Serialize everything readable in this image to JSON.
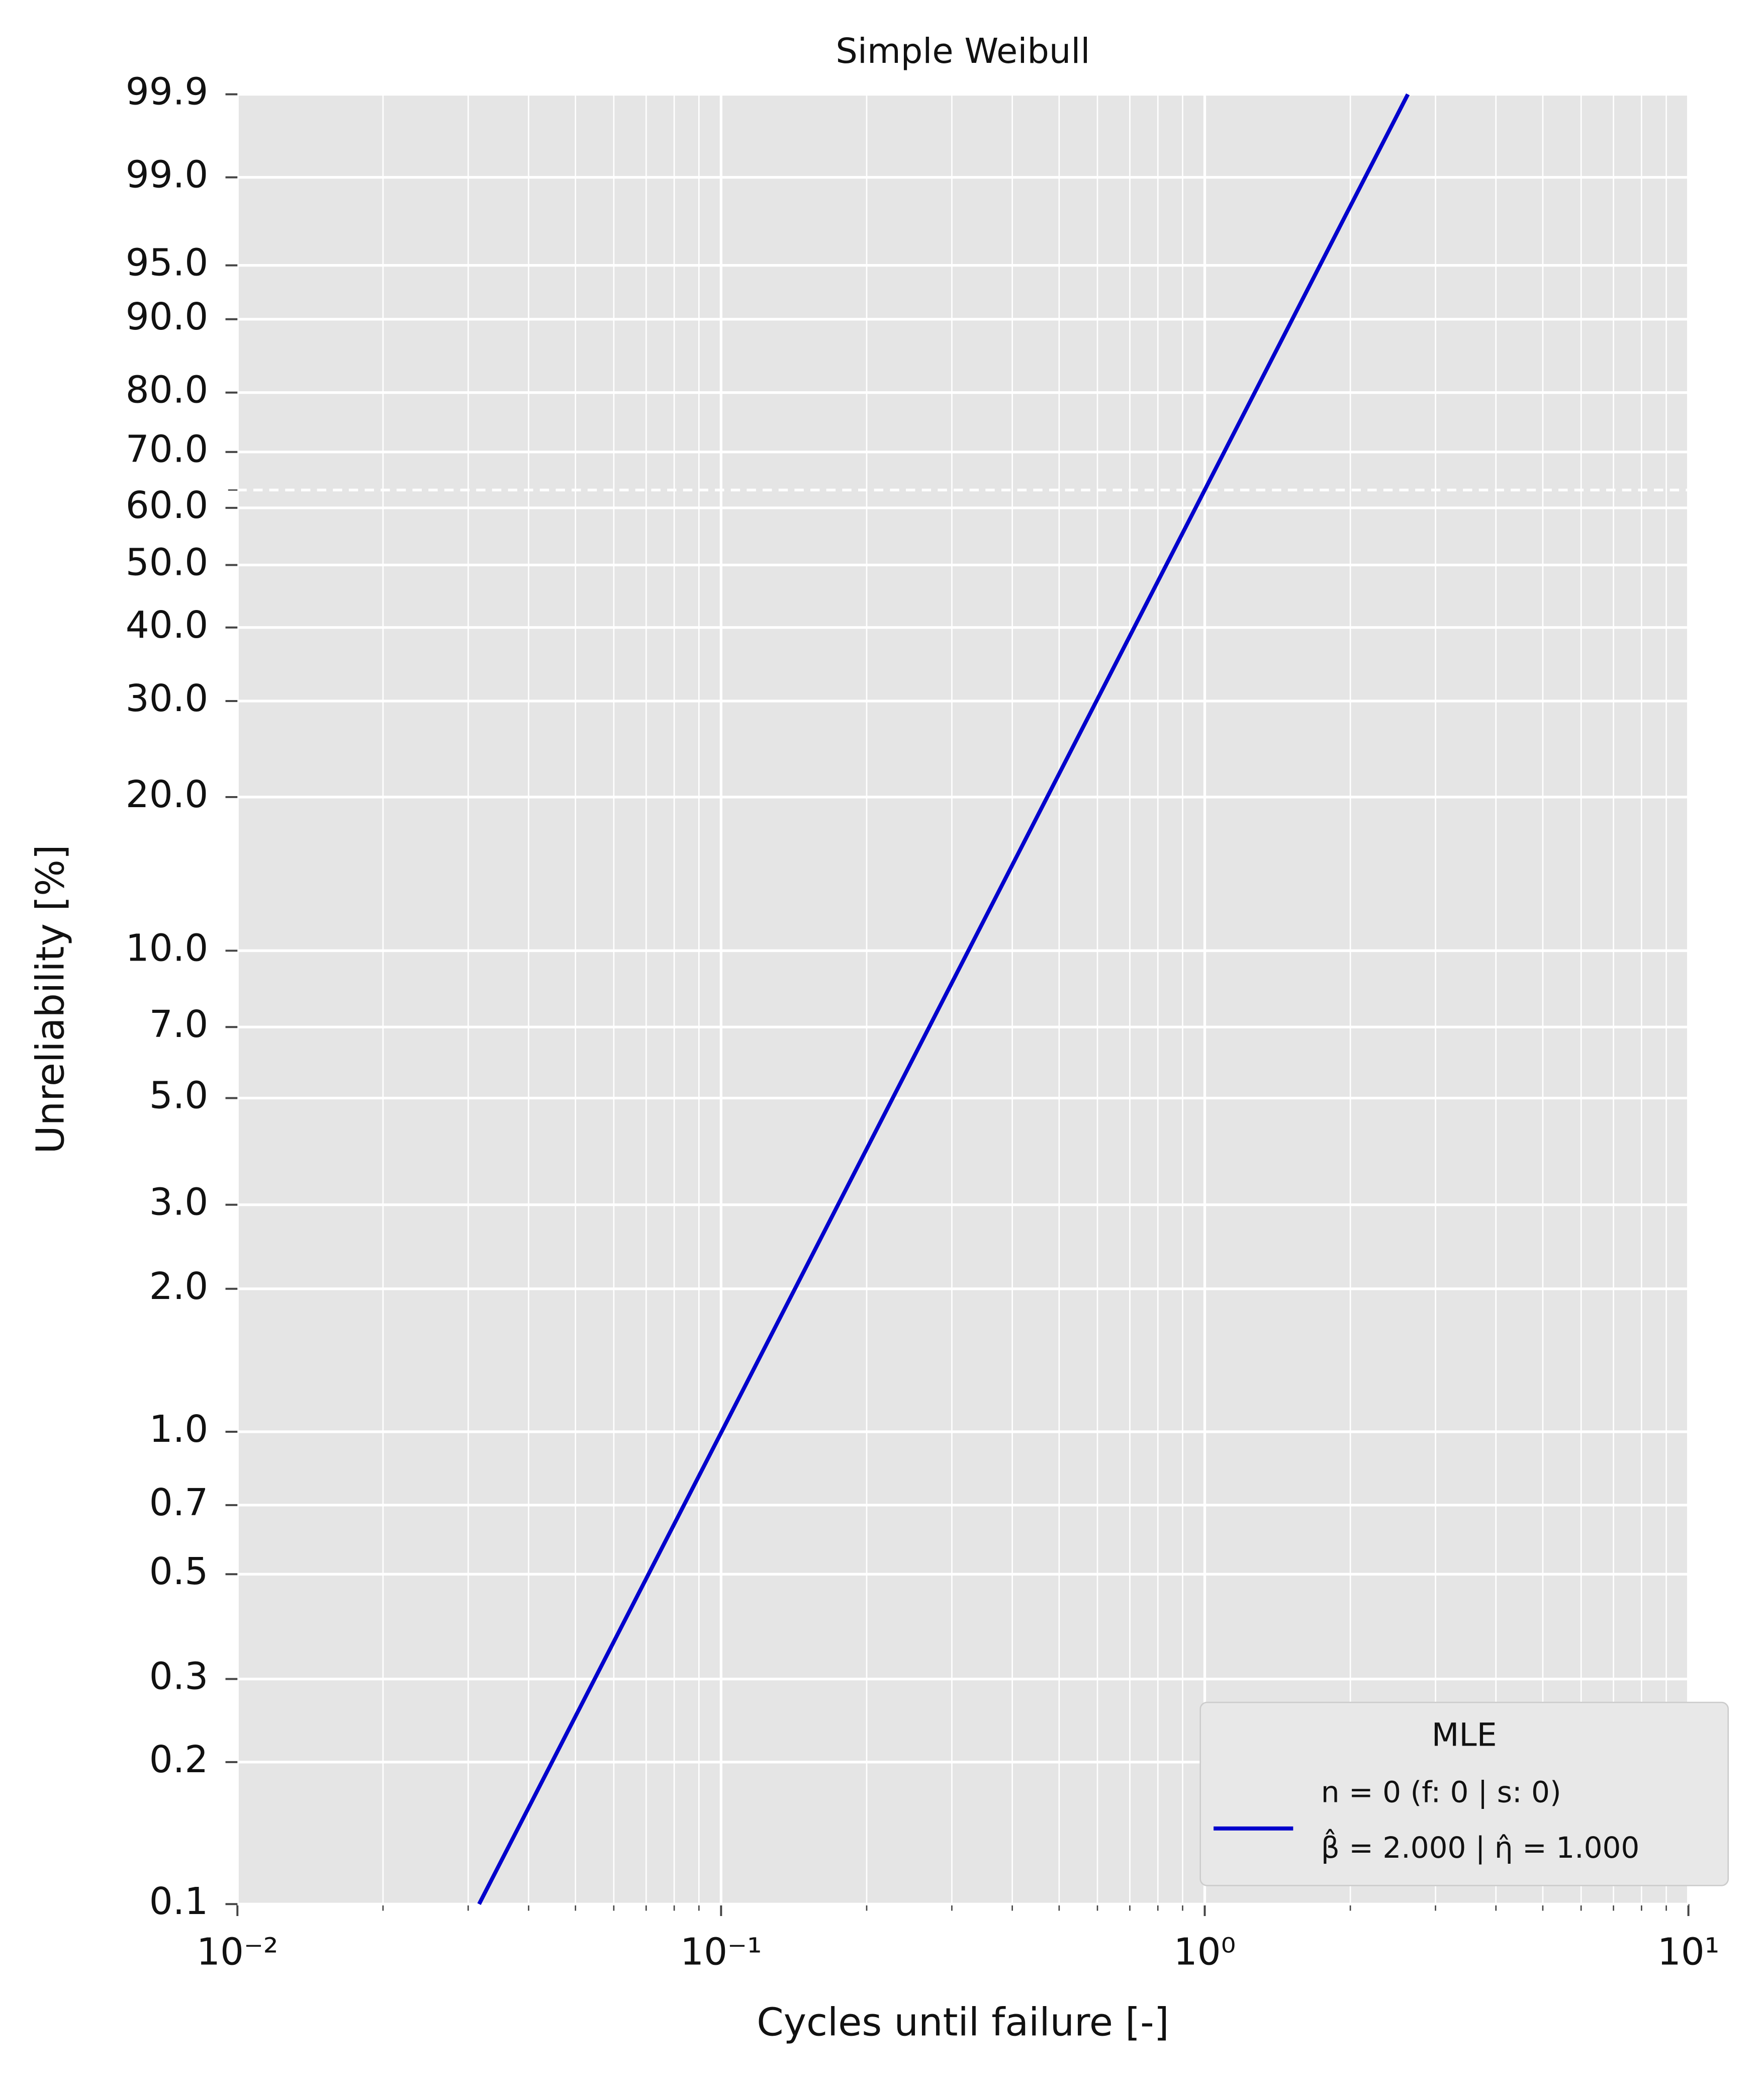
{
  "chart_data": {
    "type": "line",
    "title": "Simple Weibull",
    "x_label": "Cycles until failure [-]",
    "y_label": "Unreliability [%]",
    "x_scale": "log",
    "y_scale": "weibull",
    "xlim": [
      0.01,
      10
    ],
    "xticks": [
      {
        "value": 0.01,
        "label": "10⁻²"
      },
      {
        "value": 0.1,
        "label": "10⁻¹"
      },
      {
        "value": 1,
        "label": "10⁰"
      },
      {
        "value": 10,
        "label": "10¹"
      }
    ],
    "ylim": [
      0.1,
      99.9
    ],
    "yticks": [
      0.1,
      0.2,
      0.3,
      0.5,
      0.7,
      {
        "value": 1,
        "label": "1.0"
      },
      {
        "value": 2,
        "label": "2.0"
      },
      {
        "value": 3,
        "label": "3.0"
      },
      {
        "value": 5,
        "label": "5.0"
      },
      {
        "value": 7,
        "label": "7.0"
      },
      {
        "value": 10,
        "label": "10.0"
      },
      {
        "value": 20,
        "label": "20.0"
      },
      {
        "value": 30,
        "label": "30.0"
      },
      {
        "value": 40,
        "label": "40.0"
      },
      {
        "value": 50,
        "label": "50.0"
      },
      {
        "value": 60,
        "label": "60.0"
      },
      {
        "value": 70,
        "label": "70.0"
      },
      {
        "value": 80,
        "label": "80.0"
      },
      {
        "value": 90,
        "label": "90.0"
      },
      {
        "value": 95,
        "label": "95.0"
      },
      {
        "value": 99,
        "label": "99.0"
      },
      99.9
    ],
    "grid": true,
    "minor_grid": true,
    "background": "#e5e5e5",
    "reference_line": 63.2,
    "legend_title": "MLE",
    "legend_position": "lower right",
    "series": [
      {
        "name": "n = 0 (f: 0 | s: 0)",
        "legend_note": "β̂ = 2.000 | η̂ = 1.000",
        "color": "#0000cc",
        "x": [
          0.0316,
          0.1,
          0.3,
          1,
          2,
          2.63
        ],
        "values": [
          0.1,
          0.995,
          8.61,
          63.21,
          98.17,
          99.9
        ]
      }
    ]
  }
}
